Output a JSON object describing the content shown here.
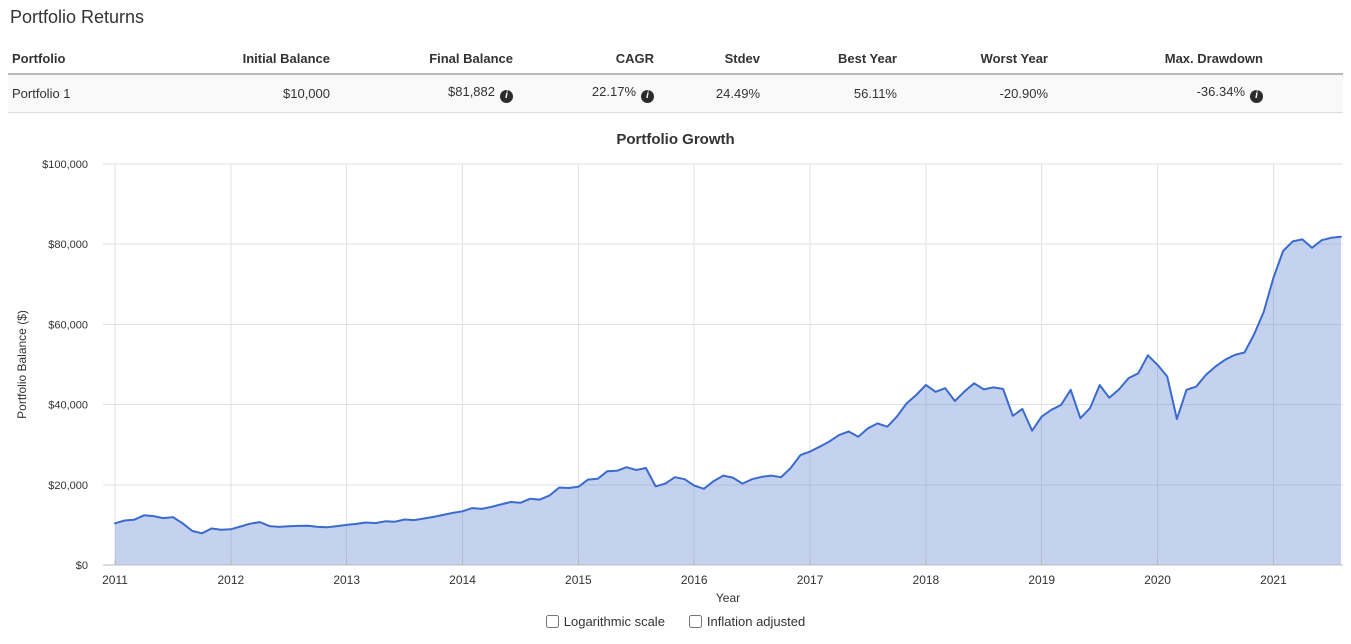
{
  "page": {
    "title": "Portfolio Returns"
  },
  "icons": {
    "info": "i"
  },
  "table": {
    "columns": [
      "Portfolio",
      "Initial Balance",
      "Final Balance",
      "CAGR",
      "Stdev",
      "Best Year",
      "Worst Year",
      "Max. Drawdown"
    ],
    "rows": [
      {
        "portfolio": "Portfolio 1",
        "initial_balance": "$10,000",
        "final_balance": "$81,882",
        "cagr": "22.17%",
        "stdev": "24.49%",
        "best_year": "56.11%",
        "worst_year": "-20.90%",
        "max_drawdown": "-36.34%"
      }
    ]
  },
  "chart_data": {
    "type": "area",
    "title": "Portfolio Growth",
    "xlabel": "Year",
    "ylabel": "Portfolio Balance ($)",
    "ylim": [
      0,
      100000
    ],
    "grid": true,
    "frequency": "monthly",
    "start": "2011-01",
    "end": "2021-08",
    "y_ticks": [
      {
        "label": "$0",
        "value": 0
      },
      {
        "label": "$20,000",
        "value": 20000
      },
      {
        "label": "$40,000",
        "value": 40000
      },
      {
        "label": "$60,000",
        "value": 60000
      },
      {
        "label": "$80,000",
        "value": 80000
      },
      {
        "label": "$100,000",
        "value": 100000
      }
    ],
    "x_ticks": [
      {
        "label": "2011",
        "month_index": 0
      },
      {
        "label": "2012",
        "month_index": 12
      },
      {
        "label": "2013",
        "month_index": 24
      },
      {
        "label": "2014",
        "month_index": 36
      },
      {
        "label": "2015",
        "month_index": 48
      },
      {
        "label": "2016",
        "month_index": 60
      },
      {
        "label": "2017",
        "month_index": 72
      },
      {
        "label": "2018",
        "month_index": 84
      },
      {
        "label": "2019",
        "month_index": 96
      },
      {
        "label": "2020",
        "month_index": 108
      },
      {
        "label": "2021",
        "month_index": 120
      }
    ],
    "series": [
      {
        "name": "Portfolio 1",
        "values": [
          10400,
          11100,
          11300,
          12400,
          12200,
          11700,
          11950,
          10400,
          8500,
          7900,
          9100,
          8800,
          8900,
          9600,
          10300,
          10700,
          9700,
          9500,
          9650,
          9750,
          9800,
          9500,
          9400,
          9700,
          10000,
          10250,
          10600,
          10450,
          10900,
          10800,
          11350,
          11200,
          11600,
          12000,
          12500,
          13000,
          13400,
          14200,
          14000,
          14500,
          15100,
          15700,
          15500,
          16500,
          16300,
          17300,
          19300,
          19200,
          19500,
          21300,
          21500,
          23400,
          23500,
          24400,
          23700,
          24200,
          19600,
          20300,
          21900,
          21400,
          19800,
          19000,
          20900,
          22300,
          21800,
          20300,
          21400,
          22000,
          22300,
          21900,
          24200,
          27400,
          28300,
          29500,
          30800,
          32400,
          33300,
          32000,
          34100,
          35300,
          34500,
          37000,
          40300,
          42400,
          44900,
          43200,
          44100,
          40900,
          43300,
          45300,
          43800,
          44300,
          43900,
          37200,
          38900,
          33500,
          37000,
          38700,
          39900,
          43700,
          36600,
          39100,
          44900,
          41700,
          43800,
          46600,
          47800,
          52300,
          49900,
          47000,
          36400,
          43700,
          44500,
          47400,
          49500,
          51200,
          52400,
          53000,
          57500,
          63200,
          71600,
          78300,
          80700,
          81200,
          79100,
          81000,
          81600,
          81882
        ]
      }
    ],
    "colors": {
      "line": "#3b6bce",
      "fill": "rgba(59,107,206,0.30)",
      "grid": "#e2e2e2",
      "axis": "#bdbdbd",
      "tick": "#b7b7b7"
    }
  },
  "controls": {
    "log_scale_label": "Logarithmic scale",
    "log_scale_checked": false,
    "inflation_label": "Inflation adjusted",
    "inflation_checked": false
  }
}
